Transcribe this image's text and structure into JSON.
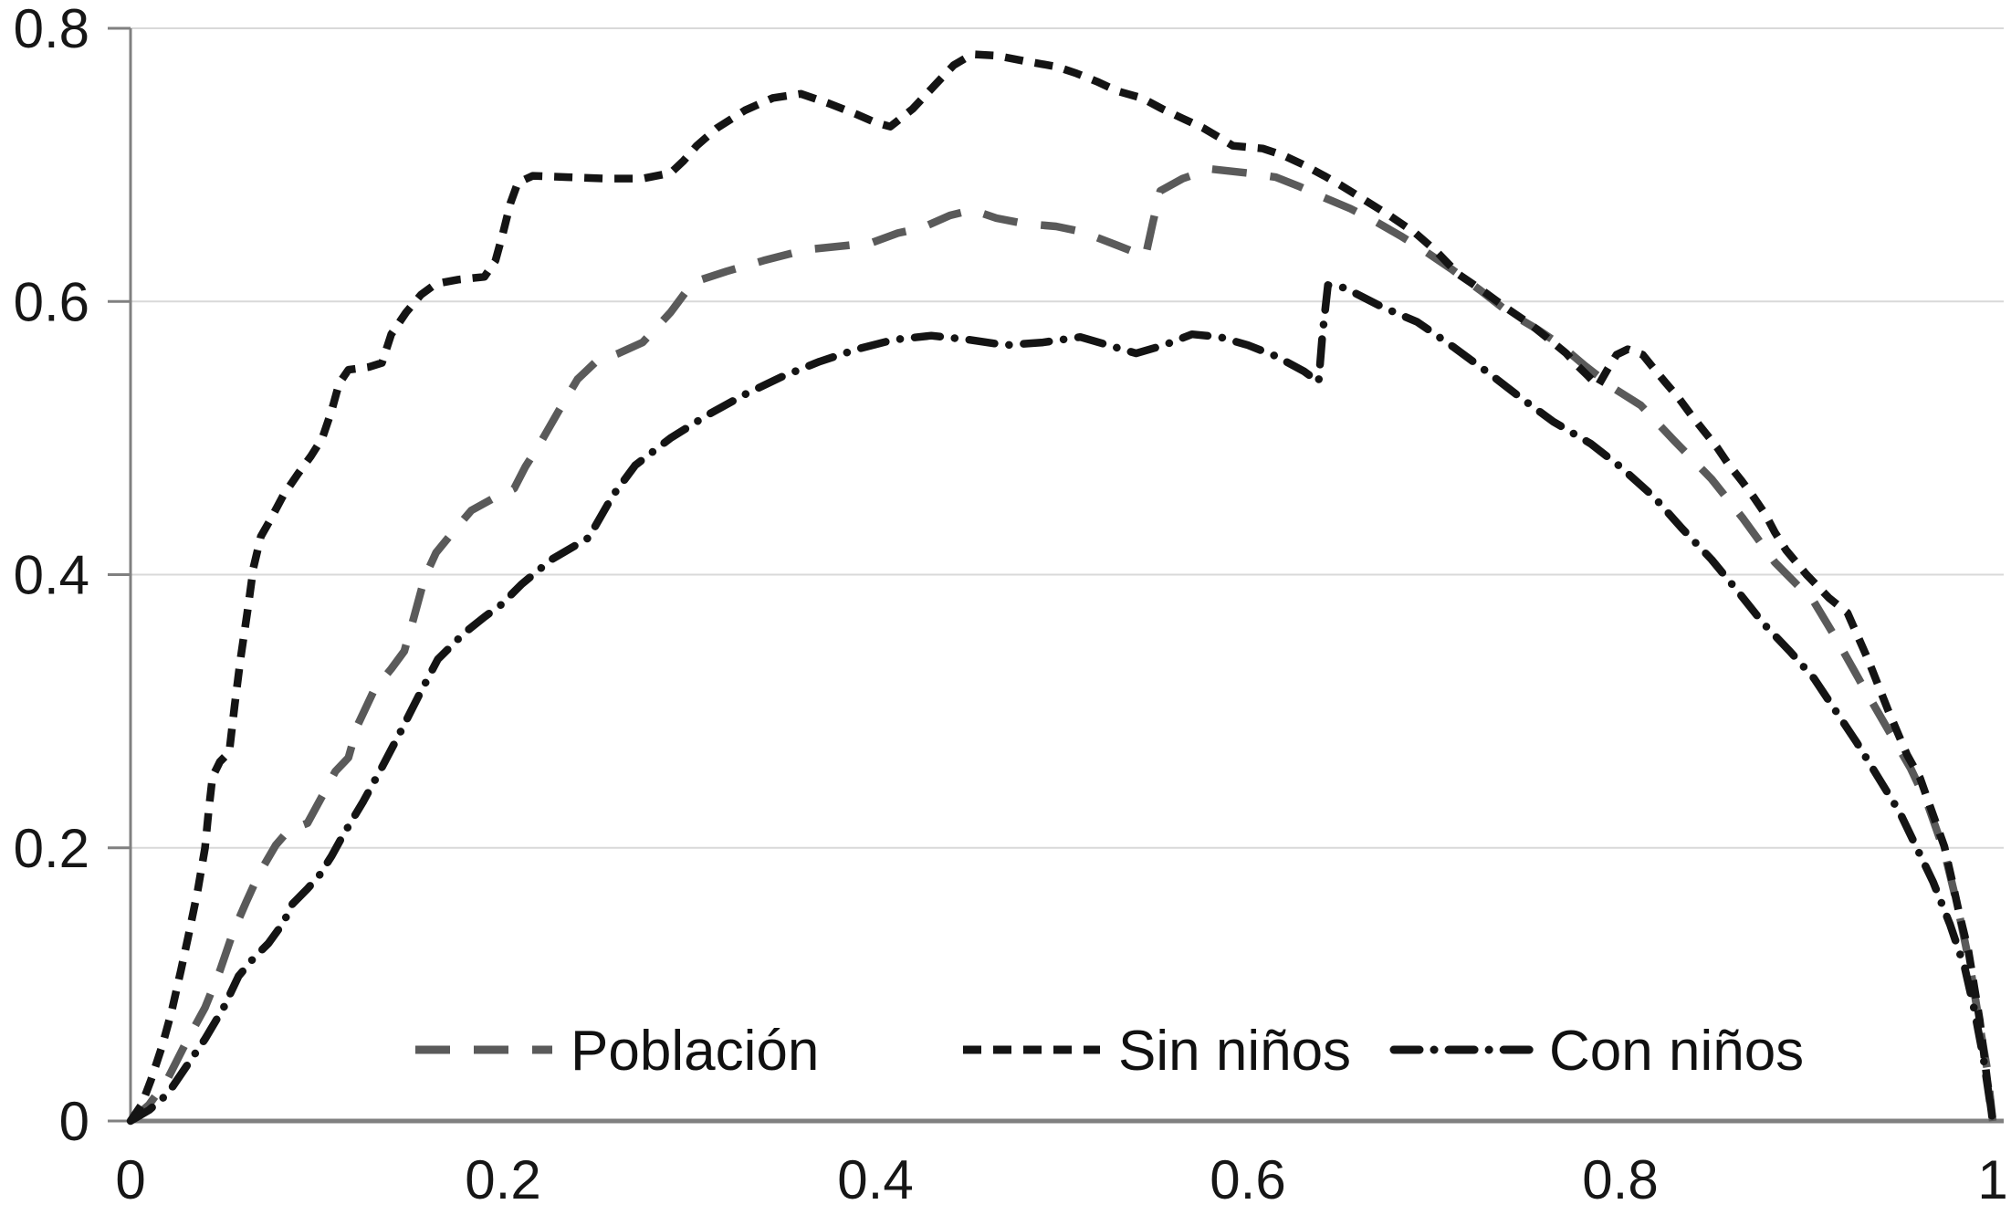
{
  "colors": {
    "background": "#ffffff",
    "gridline": "#d9d9d9",
    "axis": "#808080",
    "tick_text": "#161616",
    "series_gray": "#5a5a5a",
    "series_black": "#141414"
  },
  "legend": {
    "items": [
      {
        "label": "Población"
      },
      {
        "label": "Sin niños"
      },
      {
        "label": "Con niños"
      }
    ]
  },
  "chart_data": {
    "type": "line",
    "title": "",
    "xlabel": "",
    "ylabel": "",
    "xlim": [
      0,
      1
    ],
    "ylim": [
      0,
      0.8
    ],
    "grid": "horizontal",
    "legend_position": "bottom-inside",
    "x_ticks": {
      "values": [
        0,
        0.2,
        0.4,
        0.6,
        0.8,
        1
      ],
      "labels": [
        "0",
        "0.2",
        "0.4",
        "0.6",
        "0.8",
        "1"
      ]
    },
    "y_ticks": {
      "values": [
        0,
        0.2,
        0.4,
        0.6,
        0.8
      ],
      "labels": [
        "0",
        "0.2",
        "0.4",
        "0.6",
        "0.8"
      ]
    },
    "series": [
      {
        "name": "Población",
        "slug": "poblacion",
        "color": "#5a5a5a",
        "dash_style": "long-dash",
        "points": [
          [
            0,
            0
          ],
          [
            0.01,
            0.012
          ],
          [
            0.02,
            0.031
          ],
          [
            0.03,
            0.058
          ],
          [
            0.04,
            0.083
          ],
          [
            0.048,
            0.11
          ],
          [
            0.055,
            0.138
          ],
          [
            0.062,
            0.16
          ],
          [
            0.069,
            0.181
          ],
          [
            0.078,
            0.202
          ],
          [
            0.085,
            0.213
          ],
          [
            0.095,
            0.218
          ],
          [
            0.103,
            0.238
          ],
          [
            0.11,
            0.256
          ],
          [
            0.117,
            0.266
          ],
          [
            0.122,
            0.29
          ],
          [
            0.131,
            0.316
          ],
          [
            0.14,
            0.331
          ],
          [
            0.147,
            0.344
          ],
          [
            0.152,
            0.368
          ],
          [
            0.158,
            0.398
          ],
          [
            0.164,
            0.416
          ],
          [
            0.173,
            0.431
          ],
          [
            0.183,
            0.447
          ],
          [
            0.195,
            0.456
          ],
          [
            0.206,
            0.463
          ],
          [
            0.212,
            0.479
          ],
          [
            0.219,
            0.494
          ],
          [
            0.23,
            0.52
          ],
          [
            0.24,
            0.543
          ],
          [
            0.25,
            0.556
          ],
          [
            0.262,
            0.562
          ],
          [
            0.275,
            0.57
          ],
          [
            0.29,
            0.592
          ],
          [
            0.302,
            0.614
          ],
          [
            0.32,
            0.622
          ],
          [
            0.34,
            0.63
          ],
          [
            0.363,
            0.638
          ],
          [
            0.385,
            0.641
          ],
          [
            0.398,
            0.643
          ],
          [
            0.412,
            0.65
          ],
          [
            0.425,
            0.654
          ],
          [
            0.44,
            0.663
          ],
          [
            0.452,
            0.667
          ],
          [
            0.465,
            0.661
          ],
          [
            0.48,
            0.657
          ],
          [
            0.497,
            0.655
          ],
          [
            0.511,
            0.651
          ],
          [
            0.53,
            0.641
          ],
          [
            0.545,
            0.633
          ],
          [
            0.549,
            0.658
          ],
          [
            0.553,
            0.681
          ],
          [
            0.565,
            0.69
          ],
          [
            0.58,
            0.697
          ],
          [
            0.6,
            0.694
          ],
          [
            0.615,
            0.691
          ],
          [
            0.628,
            0.684
          ],
          [
            0.641,
            0.676
          ],
          [
            0.655,
            0.668
          ],
          [
            0.668,
            0.659
          ],
          [
            0.682,
            0.648
          ],
          [
            0.695,
            0.637
          ],
          [
            0.71,
            0.623
          ],
          [
            0.725,
            0.608
          ],
          [
            0.74,
            0.592
          ],
          [
            0.755,
            0.58
          ],
          [
            0.768,
            0.568
          ],
          [
            0.781,
            0.553
          ],
          [
            0.797,
            0.536
          ],
          [
            0.811,
            0.524
          ],
          [
            0.829,
            0.498
          ],
          [
            0.849,
            0.47
          ],
          [
            0.866,
            0.441
          ],
          [
            0.883,
            0.409
          ],
          [
            0.904,
            0.38
          ],
          [
            0.916,
            0.353
          ],
          [
            0.93,
            0.319
          ],
          [
            0.944,
            0.286
          ],
          [
            0.956,
            0.258
          ],
          [
            0.965,
            0.232
          ],
          [
            0.974,
            0.197
          ],
          [
            0.981,
            0.158
          ],
          [
            0.988,
            0.112
          ],
          [
            0.993,
            0.07
          ],
          [
            0.997,
            0.038
          ],
          [
            1,
            0
          ]
        ]
      },
      {
        "name": "Sin niños",
        "slug": "sin-ninos",
        "color": "#141414",
        "dash_style": "short-dash",
        "points": [
          [
            0,
            0
          ],
          [
            0.006,
            0.012
          ],
          [
            0.011,
            0.03
          ],
          [
            0.017,
            0.055
          ],
          [
            0.022,
            0.08
          ],
          [
            0.027,
            0.11
          ],
          [
            0.031,
            0.135
          ],
          [
            0.036,
            0.168
          ],
          [
            0.04,
            0.2
          ],
          [
            0.042,
            0.228
          ],
          [
            0.044,
            0.252
          ],
          [
            0.048,
            0.263
          ],
          [
            0.053,
            0.27
          ],
          [
            0.056,
            0.305
          ],
          [
            0.059,
            0.338
          ],
          [
            0.063,
            0.375
          ],
          [
            0.066,
            0.405
          ],
          [
            0.07,
            0.428
          ],
          [
            0.075,
            0.44
          ],
          [
            0.082,
            0.458
          ],
          [
            0.09,
            0.474
          ],
          [
            0.097,
            0.487
          ],
          [
            0.103,
            0.5
          ],
          [
            0.108,
            0.52
          ],
          [
            0.112,
            0.54
          ],
          [
            0.117,
            0.55
          ],
          [
            0.128,
            0.552
          ],
          [
            0.135,
            0.555
          ],
          [
            0.14,
            0.576
          ],
          [
            0.148,
            0.592
          ],
          [
            0.156,
            0.605
          ],
          [
            0.164,
            0.613
          ],
          [
            0.176,
            0.616
          ],
          [
            0.19,
            0.618
          ],
          [
            0.196,
            0.63
          ],
          [
            0.2,
            0.65
          ],
          [
            0.204,
            0.672
          ],
          [
            0.208,
            0.687
          ],
          [
            0.216,
            0.692
          ],
          [
            0.235,
            0.691
          ],
          [
            0.255,
            0.69
          ],
          [
            0.275,
            0.69
          ],
          [
            0.29,
            0.694
          ],
          [
            0.297,
            0.703
          ],
          [
            0.304,
            0.714
          ],
          [
            0.315,
            0.727
          ],
          [
            0.33,
            0.74
          ],
          [
            0.345,
            0.749
          ],
          [
            0.36,
            0.752
          ],
          [
            0.375,
            0.745
          ],
          [
            0.39,
            0.737
          ],
          [
            0.4,
            0.731
          ],
          [
            0.408,
            0.728
          ],
          [
            0.42,
            0.741
          ],
          [
            0.431,
            0.757
          ],
          [
            0.442,
            0.773
          ],
          [
            0.452,
            0.781
          ],
          [
            0.465,
            0.78
          ],
          [
            0.48,
            0.776
          ],
          [
            0.497,
            0.772
          ],
          [
            0.508,
            0.767
          ],
          [
            0.519,
            0.761
          ],
          [
            0.53,
            0.754
          ],
          [
            0.543,
            0.749
          ],
          [
            0.554,
            0.741
          ],
          [
            0.565,
            0.734
          ],
          [
            0.576,
            0.727
          ],
          [
            0.586,
            0.719
          ],
          [
            0.592,
            0.714
          ],
          [
            0.608,
            0.712
          ],
          [
            0.619,
            0.707
          ],
          [
            0.63,
            0.7
          ],
          [
            0.641,
            0.692
          ],
          [
            0.65,
            0.685
          ],
          [
            0.663,
            0.674
          ],
          [
            0.676,
            0.663
          ],
          [
            0.69,
            0.65
          ],
          [
            0.701,
            0.637
          ],
          [
            0.713,
            0.62
          ],
          [
            0.727,
            0.607
          ],
          [
            0.739,
            0.595
          ],
          [
            0.752,
            0.583
          ],
          [
            0.762,
            0.572
          ],
          [
            0.771,
            0.562
          ],
          [
            0.777,
            0.553
          ],
          [
            0.783,
            0.545
          ],
          [
            0.788,
            0.538
          ],
          [
            0.793,
            0.55
          ],
          [
            0.798,
            0.561
          ],
          [
            0.804,
            0.565
          ],
          [
            0.812,
            0.561
          ],
          [
            0.818,
            0.551
          ],
          [
            0.824,
            0.541
          ],
          [
            0.831,
            0.53
          ],
          [
            0.838,
            0.517
          ],
          [
            0.845,
            0.505
          ],
          [
            0.852,
            0.493
          ],
          [
            0.858,
            0.481
          ],
          [
            0.865,
            0.469
          ],
          [
            0.872,
            0.456
          ],
          [
            0.878,
            0.444
          ],
          [
            0.883,
            0.431
          ],
          [
            0.889,
            0.418
          ],
          [
            0.9,
            0.4
          ],
          [
            0.912,
            0.383
          ],
          [
            0.922,
            0.372
          ],
          [
            0.933,
            0.338
          ],
          [
            0.944,
            0.3
          ],
          [
            0.954,
            0.268
          ],
          [
            0.961,
            0.251
          ],
          [
            0.968,
            0.224
          ],
          [
            0.974,
            0.201
          ],
          [
            0.978,
            0.177
          ],
          [
            0.982,
            0.152
          ],
          [
            0.987,
            0.124
          ],
          [
            0.99,
            0.099
          ],
          [
            0.993,
            0.074
          ],
          [
            0.995,
            0.052
          ],
          [
            0.997,
            0.03
          ],
          [
            1,
            0
          ]
        ]
      },
      {
        "name": "Con niños",
        "slug": "con-ninos",
        "color": "#141414",
        "dash_style": "dash-dot",
        "points": [
          [
            0,
            0
          ],
          [
            0.01,
            0.008
          ],
          [
            0.02,
            0.02
          ],
          [
            0.03,
            0.04
          ],
          [
            0.04,
            0.06
          ],
          [
            0.05,
            0.083
          ],
          [
            0.058,
            0.106
          ],
          [
            0.066,
            0.119
          ],
          [
            0.074,
            0.13
          ],
          [
            0.082,
            0.145
          ],
          [
            0.087,
            0.159
          ],
          [
            0.095,
            0.17
          ],
          [
            0.101,
            0.179
          ],
          [
            0.108,
            0.194
          ],
          [
            0.114,
            0.209
          ],
          [
            0.125,
            0.234
          ],
          [
            0.135,
            0.259
          ],
          [
            0.145,
            0.285
          ],
          [
            0.155,
            0.312
          ],
          [
            0.165,
            0.338
          ],
          [
            0.179,
            0.357
          ],
          [
            0.19,
            0.369
          ],
          [
            0.199,
            0.378
          ],
          [
            0.21,
            0.393
          ],
          [
            0.226,
            0.411
          ],
          [
            0.246,
            0.427
          ],
          [
            0.259,
            0.458
          ],
          [
            0.271,
            0.48
          ],
          [
            0.29,
            0.5
          ],
          [
            0.31,
            0.517
          ],
          [
            0.33,
            0.532
          ],
          [
            0.35,
            0.545
          ],
          [
            0.37,
            0.556
          ],
          [
            0.39,
            0.565
          ],
          [
            0.41,
            0.572
          ],
          [
            0.43,
            0.575
          ],
          [
            0.45,
            0.572
          ],
          [
            0.47,
            0.568
          ],
          [
            0.49,
            0.57
          ],
          [
            0.51,
            0.574
          ],
          [
            0.525,
            0.568
          ],
          [
            0.54,
            0.562
          ],
          [
            0.555,
            0.568
          ],
          [
            0.57,
            0.576
          ],
          [
            0.585,
            0.574
          ],
          [
            0.6,
            0.568
          ],
          [
            0.615,
            0.56
          ],
          [
            0.63,
            0.549
          ],
          [
            0.638,
            0.541
          ],
          [
            0.64,
            0.575
          ],
          [
            0.643,
            0.612
          ],
          [
            0.652,
            0.61
          ],
          [
            0.672,
            0.596
          ],
          [
            0.691,
            0.585
          ],
          [
            0.71,
            0.567
          ],
          [
            0.728,
            0.549
          ],
          [
            0.747,
            0.529
          ],
          [
            0.764,
            0.512
          ],
          [
            0.784,
            0.496
          ],
          [
            0.8,
            0.479
          ],
          [
            0.818,
            0.457
          ],
          [
            0.833,
            0.434
          ],
          [
            0.849,
            0.411
          ],
          [
            0.863,
            0.388
          ],
          [
            0.877,
            0.364
          ],
          [
            0.891,
            0.344
          ],
          [
            0.904,
            0.324
          ],
          [
            0.927,
            0.277
          ],
          [
            0.95,
            0.226
          ],
          [
            0.968,
            0.175
          ],
          [
            0.977,
            0.144
          ],
          [
            0.985,
            0.112
          ],
          [
            0.99,
            0.082
          ],
          [
            0.995,
            0.046
          ],
          [
            1,
            0
          ]
        ]
      }
    ]
  }
}
